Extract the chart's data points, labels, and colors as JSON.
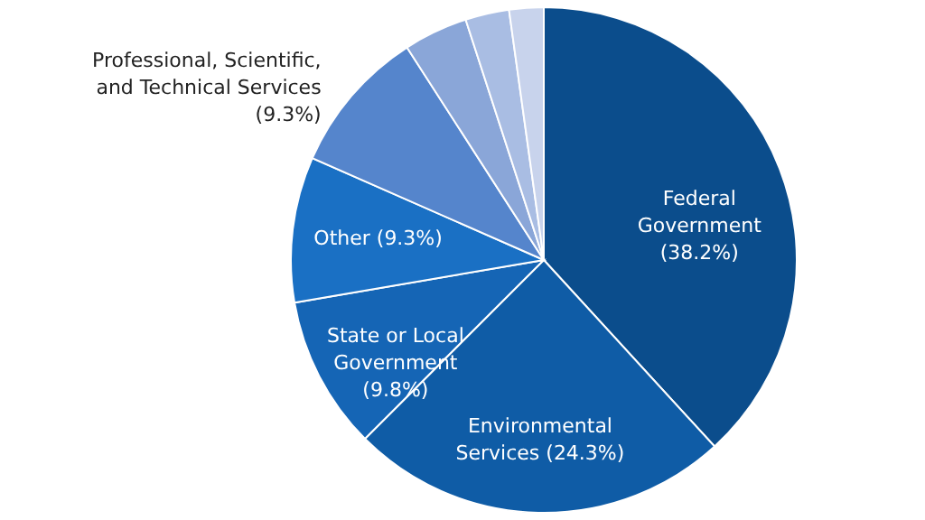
{
  "chart_data": {
    "type": "pie",
    "categories": [
      "Federal Government (38.2%)",
      "Environmental Services (24.3%)",
      "State or Local Government (9.8%)",
      "Other (9.3%)",
      "Professional, Scientific, and Technical Services (9.3%)",
      null,
      null,
      null
    ],
    "values": [
      38.2,
      24.3,
      9.8,
      9.3,
      9.3,
      4.1,
      2.8,
      2.2
    ],
    "colors": [
      "#0b4d8c",
      "#0f5ca6",
      "#1565b5",
      "#1a70c4",
      "#5585cc",
      "#8aa6d8",
      "#a9bde3",
      "#c8d3ec"
    ]
  }
}
